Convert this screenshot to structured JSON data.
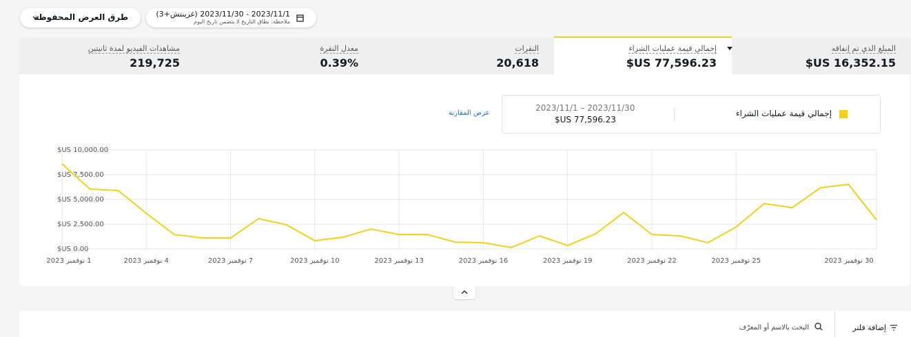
{
  "toolbar": {
    "saved_views": "طرق العرض المحفوظة",
    "date_range": "2023/11/1 - 2023/11/30 (غرينتش+3)",
    "date_note": "ملاحظة: نطاق التاريخ لا يتضمن تاريخ اليوم"
  },
  "metrics": [
    {
      "label": "المبلغ الذي تم إنفاقه",
      "value": "$US 16,352.15"
    },
    {
      "label": "إجمالي قيمة عمليات الشراء",
      "value": "$US 77,596.23"
    },
    {
      "label": "النقرات",
      "value": "20,618"
    },
    {
      "label": "معدل النقرة",
      "value": "0.39%"
    },
    {
      "label": "مشاهدات الفيديو لمدة ثانيتين",
      "value": "219,725"
    }
  ],
  "compare_link": "عرض المقارنة",
  "filters": {
    "add_filter": "إضافة فلتر",
    "search_placeholder": "البحث بالاسم أو المعرّف"
  },
  "chart_data": {
    "type": "line",
    "legend": {
      "range": "2023/11/1 – 2023/11/30",
      "total": "$US 77,596.23"
    },
    "categories": [
      "1 نوفمبر 2023",
      null,
      null,
      "4 نوفمبر 2023",
      null,
      null,
      "7 نوفمبر 2023",
      null,
      null,
      "10 نوفمبر 2023",
      null,
      null,
      "13 نوفمبر 2023",
      null,
      null,
      "16 نوفمبر 2023",
      null,
      null,
      "19 نوفمبر 2023",
      null,
      null,
      "22 نوفمبر 2023",
      null,
      null,
      "25 نوفمبر 2023",
      null,
      null,
      null,
      null,
      "30 نوفمبر 2023"
    ],
    "series": [
      {
        "name": "إجمالي قيمة عمليات الشراء",
        "color": "#f7d117",
        "values": [
          8600,
          6040,
          5900,
          3600,
          1460,
          1110,
          1110,
          3060,
          2430,
          830,
          1180,
          2010,
          1460,
          1460,
          690,
          630,
          140,
          1320,
          350,
          1530,
          3680,
          1460,
          1320,
          630,
          2220,
          4580,
          4170,
          6180,
          6530,
          2920
        ]
      }
    ],
    "ylim": [
      0,
      10000
    ],
    "yticks": [
      {
        "value": 0,
        "label": "$US 0.00"
      },
      {
        "value": 2500,
        "label": "$US 2,500.00"
      },
      {
        "value": 5000,
        "label": "$US 5,000.00"
      },
      {
        "value": 7500,
        "label": "$US 7,500.00"
      },
      {
        "value": 10000,
        "label": "$US 10,000.00"
      }
    ],
    "grid": true
  }
}
